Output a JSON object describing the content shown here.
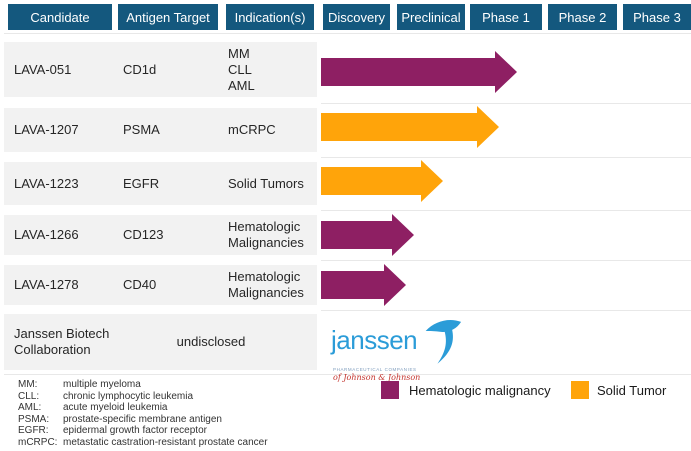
{
  "palette": {
    "header_bg": "#14587E",
    "row_bg": "#F2F2F2",
    "separator": "#E8E8E8",
    "hematologic": "#8E1F63",
    "solid_tumor": "#FFA40A",
    "janssen_blue": "#2B9CD8",
    "janssen_red": "#C4342E"
  },
  "header_columns": [
    "Candidate",
    "Antigen Target",
    "Indication(s)",
    "Discovery",
    "Preclinical",
    "Phase 1",
    "Phase 2",
    "Phase 3"
  ],
  "chart_data": {
    "type": "bar",
    "subtype": "clinical-pipeline-arrows",
    "stages": [
      "Discovery",
      "Preclinical",
      "Phase 1",
      "Phase 2",
      "Phase 3"
    ],
    "stage_extent_note": "stage_extent = arrow length measured in stage widths from the start of Discovery",
    "rows": [
      {
        "candidate": "LAVA-051",
        "target": "CD1d",
        "indications": "MM\nCLL\nAML",
        "category": "Hematologic malignancy",
        "stage_extent": 2.65
      },
      {
        "candidate": "LAVA-1207",
        "target": "PSMA",
        "indications": "mCRPC",
        "category": "Solid Tumor",
        "stage_extent": 2.4
      },
      {
        "candidate": "LAVA-1223",
        "target": "EGFR",
        "indications": "Solid Tumors",
        "category": "Solid Tumor",
        "stage_extent": 1.65
      },
      {
        "candidate": "LAVA-1266",
        "target": "CD123",
        "indications": "Hematologic Malignancies",
        "category": "Hematologic malignancy",
        "stage_extent": 1.25
      },
      {
        "candidate": "LAVA-1278",
        "target": "CD40",
        "indications": "Hematologic Malignancies",
        "category": "Hematologic malignancy",
        "stage_extent": 1.15
      }
    ],
    "collaboration_row": {
      "candidate": "Janssen Biotech Collaboration",
      "disclosure": "undisclosed"
    }
  },
  "legend": {
    "items": [
      {
        "label": "Hematologic malignancy",
        "color": "#8E1F63"
      },
      {
        "label": "Solid Tumor",
        "color": "#FFA40A"
      }
    ]
  },
  "logo": {
    "word": "janssen",
    "sub_caps": "PHARMACEUTICAL COMPANIES",
    "sub_script": "of Johnson & Johnson"
  },
  "footnotes": [
    {
      "abbr": "MM:",
      "definition": "multiple myeloma"
    },
    {
      "abbr": "CLL:",
      "definition": "chronic lymphocytic leukemia"
    },
    {
      "abbr": "AML:",
      "definition": "acute myeloid leukemia"
    },
    {
      "abbr": "PSMA:",
      "definition": "prostate-specific membrane antigen"
    },
    {
      "abbr": "EGFR:",
      "definition": "epidermal growth factor receptor"
    },
    {
      "abbr": "mCRPC:",
      "definition": "metastatic castration-resistant prostate cancer"
    }
  ]
}
